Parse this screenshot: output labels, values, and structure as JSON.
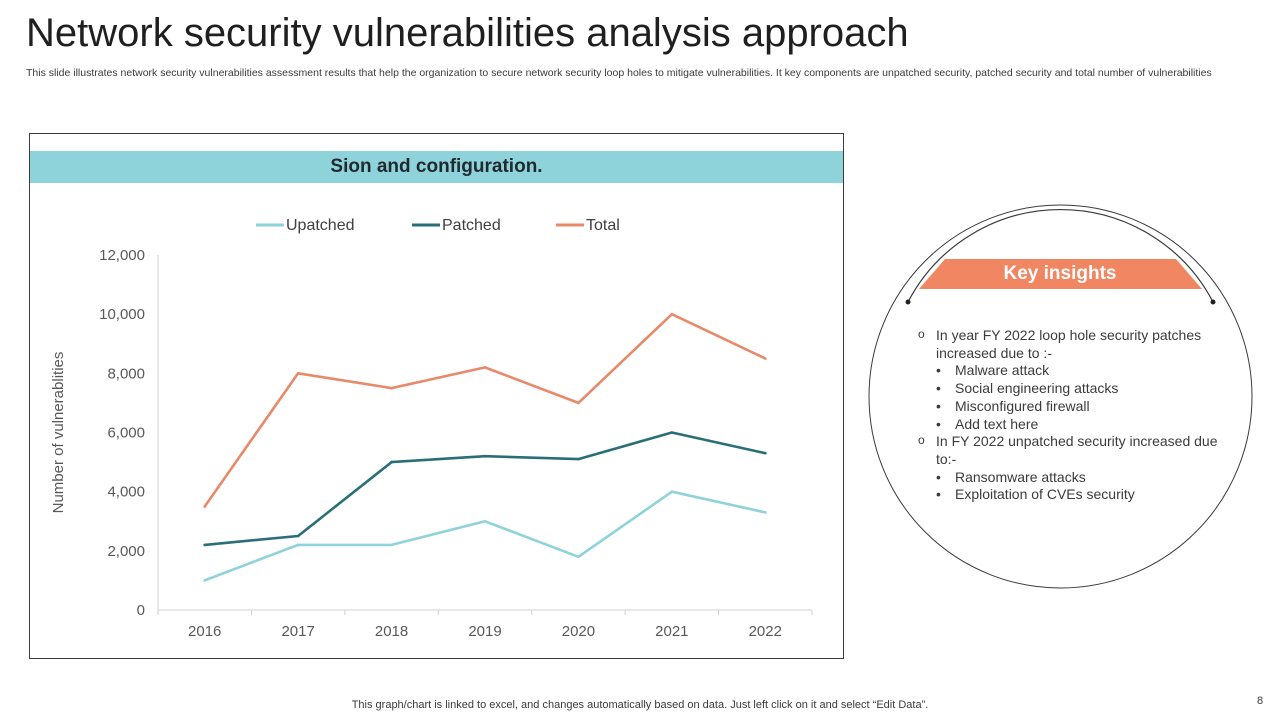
{
  "title": "Network security vulnerabilities analysis approach",
  "subtitle": "This slide illustrates network security vulnerabilities  assessment results that help the organization to secure network security loop holes to mitigate vulnerabilities. It key components are unpatched security, patched security and total number of vulnerabilities",
  "chart_header": "Sion and configuration.",
  "chart_data": {
    "type": "line",
    "title": "Sion and configuration.",
    "categories": [
      "2016",
      "2017",
      "2018",
      "2019",
      "2020",
      "2021",
      "2022"
    ],
    "series": [
      {
        "name": "Upatched",
        "color": "#8fd3da",
        "values": [
          1000,
          2200,
          2200,
          3000,
          1800,
          4000,
          3300
        ]
      },
      {
        "name": "Patched",
        "color": "#2a6f78",
        "values": [
          2200,
          2500,
          5000,
          5200,
          5100,
          6000,
          5300
        ]
      },
      {
        "name": "Total",
        "color": "#e8896a",
        "values": [
          3500,
          8000,
          7500,
          8200,
          7000,
          10000,
          8500
        ]
      }
    ],
    "xlabel": "",
    "ylabel": "Number of vulnerablities",
    "ylim": [
      0,
      12000
    ],
    "yticks": [
      "0",
      "2,000",
      "4,000",
      "6,000",
      "8,000",
      "10,000",
      "12,000"
    ],
    "grid": false,
    "legend": "top"
  },
  "insights": {
    "header": "Key insights",
    "groups": [
      {
        "text": "In year FY 2022 loop hole security patches increased due to :-",
        "items": [
          "Malware attack",
          "Social engineering attacks",
          "Misconfigured firewall",
          "Add text here"
        ]
      },
      {
        "text": "In FY 2022 unpatched security increased due to:-",
        "items": [
          "Ransomware attacks",
          "Exploitation of CVEs security"
        ]
      }
    ],
    "colors": {
      "header_bg": "#f08662",
      "circle": "#3a3a3a"
    }
  },
  "footer": "This graph/chart is linked to excel,  and changes automatically based on data. Just left click on it and select “Edit Data”.",
  "page_number": "8"
}
